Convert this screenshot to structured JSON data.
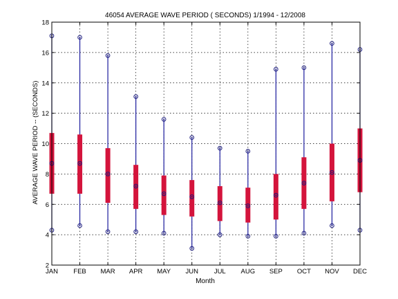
{
  "chart_data": {
    "type": "box",
    "title": "46054  AVERAGE WAVE PERIOD ( SECONDS) 1/1994 - 12/2008",
    "xlabel": "Month",
    "ylabel": "AVERAGE WAVE PERIOD -- (SECONDS)",
    "ylim": [
      2,
      18
    ],
    "yticks": [
      2,
      4,
      6,
      8,
      10,
      12,
      14,
      16,
      18
    ],
    "grid": true,
    "categories": [
      "JAN",
      "FEB",
      "MAR",
      "APR",
      "MAY",
      "JUN",
      "JUL",
      "AUG",
      "SEP",
      "OCT",
      "NOV",
      "DEC"
    ],
    "min": [
      4.3,
      4.6,
      4.2,
      4.2,
      4.1,
      3.1,
      4.0,
      3.9,
      3.9,
      4.1,
      4.6,
      4.3
    ],
    "q1": [
      6.7,
      6.7,
      6.1,
      5.7,
      5.3,
      5.2,
      4.9,
      4.8,
      5.0,
      5.7,
      6.2,
      6.8
    ],
    "median": [
      8.7,
      8.7,
      8.0,
      7.2,
      6.7,
      6.5,
      6.1,
      5.9,
      6.6,
      7.4,
      8.1,
      8.9
    ],
    "q3": [
      10.7,
      10.6,
      9.7,
      8.6,
      7.9,
      7.6,
      7.2,
      7.1,
      8.0,
      9.1,
      10.0,
      11.0
    ],
    "max": [
      17.1,
      17.0,
      15.8,
      13.1,
      11.6,
      10.4,
      9.7,
      9.5,
      14.9,
      15.0,
      16.6,
      16.2
    ],
    "colors": {
      "whisker": "#1a1a9c",
      "box": "#d4143c",
      "marker": "#1a1a7c"
    }
  }
}
